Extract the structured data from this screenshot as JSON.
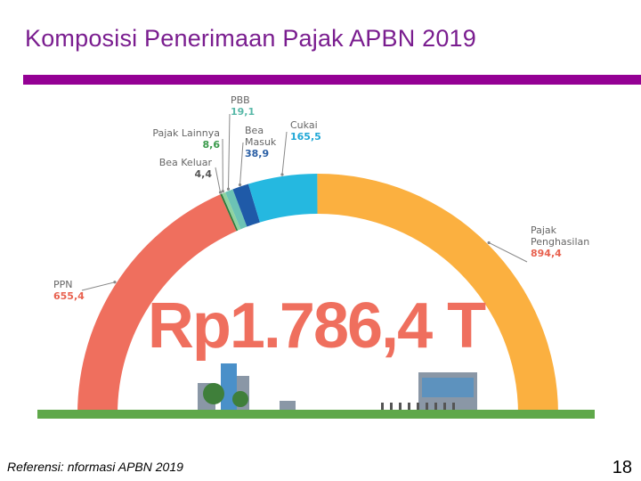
{
  "slide": {
    "title": "Komposisi Penerimaan Pajak APBN 2019",
    "reference": "Referensi: nformasi APBN 2019",
    "page_number": "18"
  },
  "chart_data": {
    "type": "pie",
    "style": "semi-donut",
    "center_label": "Rp1.786,4 T",
    "total": 1786.4,
    "slices": [
      {
        "name": "PPN",
        "label": "PPN",
        "value": 655.4,
        "value_label": "655,4",
        "color": "#ef6f5e",
        "label_color": "#e8614f"
      },
      {
        "name": "Bea Keluar",
        "label": "Bea Keluar",
        "value": 4.4,
        "value_label": "4,4",
        "color": "#2f7a3c",
        "label_color": "#555555"
      },
      {
        "name": "Pajak Lainnya",
        "label": "Pajak Lainnya",
        "value": 8.6,
        "value_label": "8,6",
        "color": "#8fd3a0",
        "label_color": "#3a9a4b"
      },
      {
        "name": "PBB",
        "label": "PBB",
        "value": 19.1,
        "value_label": "19,1",
        "color": "#6cc3b5",
        "label_color": "#58b8a8"
      },
      {
        "name": "Bea Masuk",
        "label": "Bea Masuk",
        "value": 38.9,
        "value_label": "38,9",
        "color": "#1f5aa8",
        "label_color": "#2a5fa5"
      },
      {
        "name": "Cukai",
        "label": "Cukai",
        "value": 165.5,
        "value_label": "165,5",
        "color": "#25b8e0",
        "label_color": "#1fa7d6"
      },
      {
        "name": "Pajak Penghasilan",
        "label": "Pajak Penghasilan",
        "value": 894.4,
        "value_label": "894,4",
        "color": "#fbb040",
        "label_color": "#e8614f"
      }
    ],
    "label_text_color": "#666666",
    "leader_color": "#888888",
    "ground_color": "#5fa84a",
    "building_colors": [
      "#4a90c9",
      "#8a97a6",
      "#3f7f3a"
    ],
    "legend": "none"
  }
}
